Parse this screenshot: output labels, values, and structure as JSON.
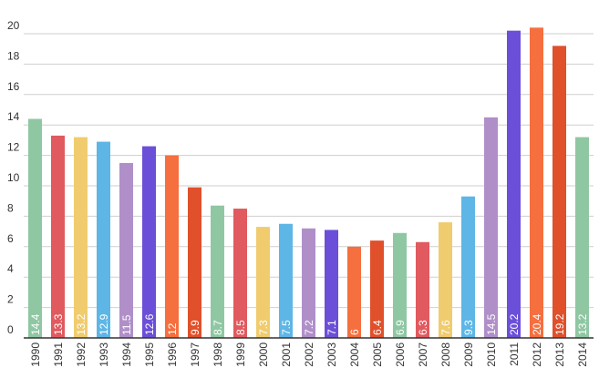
{
  "chart_data": {
    "type": "bar",
    "title": "",
    "xlabel": "",
    "ylabel": "",
    "ylim": [
      0,
      20
    ],
    "yticks": [
      0,
      2,
      4,
      6,
      8,
      10,
      12,
      14,
      16,
      18,
      20
    ],
    "grid": true,
    "legend": "none",
    "categories": [
      "1990",
      "1991",
      "1992",
      "1993",
      "1994",
      "1995",
      "1996",
      "1997",
      "1998",
      "1999",
      "2000",
      "2001",
      "2002",
      "2003",
      "2004",
      "2005",
      "2006",
      "2007",
      "2008",
      "2009",
      "2010",
      "2011",
      "2012",
      "2013",
      "2014"
    ],
    "values": [
      14.4,
      13.3,
      13.2,
      12.9,
      11.5,
      12.6,
      12,
      9.9,
      8.7,
      8.5,
      7.3,
      7.5,
      7.2,
      7.1,
      6,
      6.4,
      6.9,
      6.3,
      7.6,
      9.3,
      14.5,
      20.2,
      20.4,
      19.2,
      13.2
    ],
    "data_labels": [
      "14.4",
      "13.3",
      "13.2",
      "12.9",
      "11.5",
      "12.6",
      "12",
      "9.9",
      "8.7",
      "8.5",
      "7.3",
      "7.5",
      "7.2",
      "7.1",
      "6",
      "6.4",
      "6.9",
      "6.3",
      "7.6",
      "9.3",
      "14.5",
      "20.2",
      "20.4",
      "19.2",
      "13.2"
    ],
    "colors": [
      "#8fc7a3",
      "#e05a5f",
      "#f0cc6e",
      "#5db6e6",
      "#b08fc9",
      "#6b4fd8",
      "#f56f3f",
      "#e0502b",
      "#8fc7a3",
      "#e05a5f",
      "#f0cc6e",
      "#5db6e6",
      "#b08fc9",
      "#6b4fd8",
      "#f56f3f",
      "#e0502b",
      "#8fc7a3",
      "#e05a5f",
      "#f0cc6e",
      "#5db6e6",
      "#b08fc9",
      "#6b4fd8",
      "#f56f3f",
      "#e0502b",
      "#8fc7a3"
    ]
  }
}
